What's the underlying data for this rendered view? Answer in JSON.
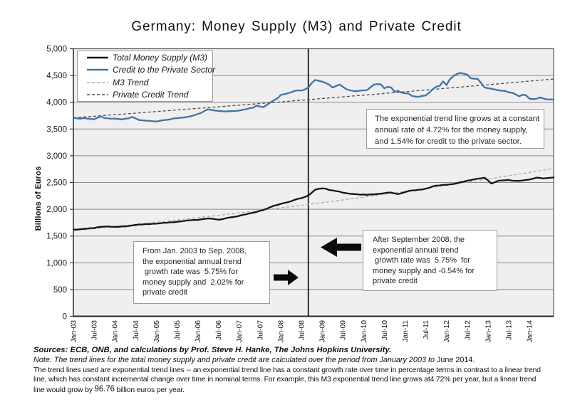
{
  "title": "Germany: Money Supply (M3) and Private Credit",
  "y_axis_title": "Billions of Euros",
  "colors": {
    "page_bg": "#ffffff",
    "plot_bg": "#efefef",
    "gridline": "#8a8a8a",
    "plot_border": "#595959",
    "axis_line": "#262626",
    "event_line": "#1a1a1a",
    "m3_line": "#141414",
    "credit_line": "#4173a3",
    "m3_trend": "#a8a8a8",
    "credit_trend": "#4d4d4d",
    "box_border": "#9b9b9b",
    "text": "#1a1a1a"
  },
  "chart_data": {
    "type": "line",
    "title": "Germany: Money Supply (M3) and Private Credit",
    "xlabel": "",
    "ylabel": "Billions of Euros",
    "ylim": [
      0,
      5000
    ],
    "y_tick_step": 500,
    "y_tick_labels": [
      "0",
      "500",
      "1,000",
      "1,500",
      "2,000",
      "2,500",
      "3,000",
      "3,500",
      "4,000",
      "4,500",
      "5,000"
    ],
    "x_unit": "months since Jan-2003, monthly data Jan-2003 to mid-2014",
    "x_tick_every_months": 6,
    "x_tick_labels": [
      "Jan-03",
      "Jul-03",
      "Jan-04",
      "Jul-04",
      "Jan-05",
      "Jul-05",
      "Jan-06",
      "Jul-06",
      "Jan-07",
      "Jul-07",
      "Jan-08",
      "Jul-08",
      "Jan-09",
      "Jul-09",
      "Jan-10",
      "Jul-10",
      "Jan-11",
      "Jul-11",
      "Jan-12",
      "Jul-12",
      "Jan-13",
      "Jul-13",
      "Jan-14"
    ],
    "grid": "horizontal",
    "legend_position": "top-left-inside",
    "event_line_month": 68,
    "event_line_date": "Sep-2008",
    "series": [
      {
        "name": "Total Money Supply (M3)",
        "style": "solid",
        "color_key": "m3_line",
        "width": 2.3,
        "values": [
          1620,
          1620,
          1628,
          1633,
          1638,
          1647,
          1648,
          1665,
          1672,
          1677,
          1678,
          1673,
          1672,
          1671,
          1680,
          1680,
          1688,
          1697,
          1706,
          1715,
          1716,
          1724,
          1722,
          1729,
          1730,
          1737,
          1748,
          1747,
          1756,
          1757,
          1766,
          1772,
          1780,
          1791,
          1795,
          1802,
          1800,
          1813,
          1820,
          1829,
          1825,
          1815,
          1805,
          1813,
          1830,
          1845,
          1853,
          1862,
          1876,
          1895,
          1905,
          1923,
          1935,
          1950,
          1972,
          1987,
          2010,
          2040,
          2064,
          2080,
          2100,
          2118,
          2130,
          2150,
          2176,
          2196,
          2208,
          2230,
          2258,
          2310,
          2366,
          2382,
          2390,
          2385,
          2360,
          2352,
          2340,
          2330,
          2310,
          2300,
          2290,
          2285,
          2280,
          2272,
          2276,
          2270,
          2278,
          2278,
          2284,
          2293,
          2300,
          2311,
          2312,
          2295,
          2284,
          2300,
          2320,
          2341,
          2353,
          2355,
          2366,
          2368,
          2385,
          2400,
          2428,
          2441,
          2445,
          2456,
          2458,
          2466,
          2472,
          2486,
          2505,
          2515,
          2535,
          2545,
          2560,
          2572,
          2579,
          2591,
          2540,
          2481,
          2505,
          2533,
          2538,
          2542,
          2546,
          2534,
          2532,
          2531,
          2538,
          2546,
          2556,
          2570,
          2590,
          2587,
          2574,
          2583,
          2588,
          2595
        ]
      },
      {
        "name": "Credit to the Private Sector",
        "style": "solid",
        "color_key": "credit_line",
        "width": 2.3,
        "values": [
          3710,
          3700,
          3692,
          3705,
          3695,
          3688,
          3682,
          3712,
          3735,
          3705,
          3698,
          3692,
          3695,
          3688,
          3680,
          3692,
          3700,
          3726,
          3698,
          3668,
          3662,
          3655,
          3652,
          3645,
          3640,
          3652,
          3665,
          3670,
          3680,
          3698,
          3702,
          3710,
          3716,
          3728,
          3738,
          3758,
          3780,
          3800,
          3840,
          3868,
          3855,
          3845,
          3838,
          3832,
          3828,
          3832,
          3835,
          3838,
          3845,
          3858,
          3870,
          3888,
          3898,
          3936,
          3920,
          3908,
          3950,
          3995,
          4035,
          4070,
          4135,
          4150,
          4166,
          4185,
          4212,
          4222,
          4218,
          4240,
          4275,
          4360,
          4417,
          4400,
          4385,
          4360,
          4330,
          4275,
          4300,
          4331,
          4290,
          4245,
          4225,
          4212,
          4205,
          4218,
          4222,
          4228,
          4280,
          4330,
          4340,
          4335,
          4260,
          4290,
          4275,
          4196,
          4212,
          4181,
          4168,
          4165,
          4118,
          4105,
          4102,
          4118,
          4128,
          4180,
          4244,
          4290,
          4306,
          4390,
          4322,
          4432,
          4490,
          4528,
          4548,
          4535,
          4516,
          4450,
          4440,
          4437,
          4360,
          4277,
          4262,
          4251,
          4238,
          4224,
          4215,
          4211,
          4185,
          4178,
          4148,
          4110,
          4140,
          4130,
          4066,
          4058,
          4062,
          4090,
          4070,
          4055,
          4052,
          4050
        ]
      },
      {
        "name": "M3 Trend",
        "style": "dashed",
        "color_key": "m3_trend",
        "width": 1.3,
        "trend": {
          "start_value": 1600,
          "annual_growth_rate_pct": 4.72
        }
      },
      {
        "name": "Private Credit Trend",
        "style": "dashed",
        "color_key": "credit_trend",
        "width": 1.3,
        "trend": {
          "start_value": 3710,
          "annual_growth_rate_pct": 1.54
        }
      }
    ]
  },
  "legend": {
    "items": [
      {
        "label": "Total Money Supply (M3)",
        "sample": "solid-black"
      },
      {
        "label": "Credit to the Private Sector",
        "sample": "solid-blue"
      },
      {
        "label": "M3 Trend",
        "sample": "dashed-light-gray"
      },
      {
        "label": "Private Credit Trend",
        "sample": "dashed-dark-gray"
      }
    ]
  },
  "annotations": [
    {
      "id": "trend-note",
      "lines": [
        "The exponential trend line grows at a constant",
        "annual rate of 4.72% for the money supply,",
        "and 1.54% for credit to the private sector."
      ]
    },
    {
      "id": "pre-2008-note",
      "lines": [
        "From Jan. 2003 to Sep. 2008,",
        "the exponential annual trend",
        " growth rate was  5.75% for",
        "money supply and  2.02% for",
        "private credit"
      ]
    },
    {
      "id": "post-2008-note",
      "lines": [
        "After September 2008, the",
        "exponential annual trend",
        " growth rate was  5.75%  for",
        "money supply and -0.54% for",
        "private credit"
      ]
    }
  ],
  "footnotes": [
    {
      "segments": [
        {
          "t": "Sources: ECB, ONB, and calculations by Prof. Steve H. Hanke, The Johns Hopkins University.",
          "s": "bold-italic"
        }
      ]
    },
    {
      "segments": [
        {
          "t": "Note: The trend lines for the total money supply and private credit are calculated over the period from January 2003 to ",
          "s": "italic"
        },
        {
          "t": "June 2014.",
          "s": "alt"
        }
      ]
    },
    {
      "segments": [
        {
          "t": "The trend lines used are exponential trend lines -- an exponential trend line has a constant growth rate over time in percentage terms in contrast to a linear trend",
          "s": "normal"
        }
      ]
    },
    {
      "segments": [
        {
          "t": "line, which has constant incremental change over time in nominal terms. For example, this M3 exponential trend line grows at",
          "s": "normal"
        },
        {
          "t": "4.72%",
          "s": "normal"
        },
        {
          "t": " per year, but a linear trend",
          "s": "normal"
        }
      ]
    },
    {
      "segments": [
        {
          "t": "line would grow by ",
          "s": "normal"
        },
        {
          "t": "96.76",
          "s": "alt-num"
        },
        {
          "t": " billion euros per year.",
          "s": "normal"
        }
      ]
    }
  ]
}
